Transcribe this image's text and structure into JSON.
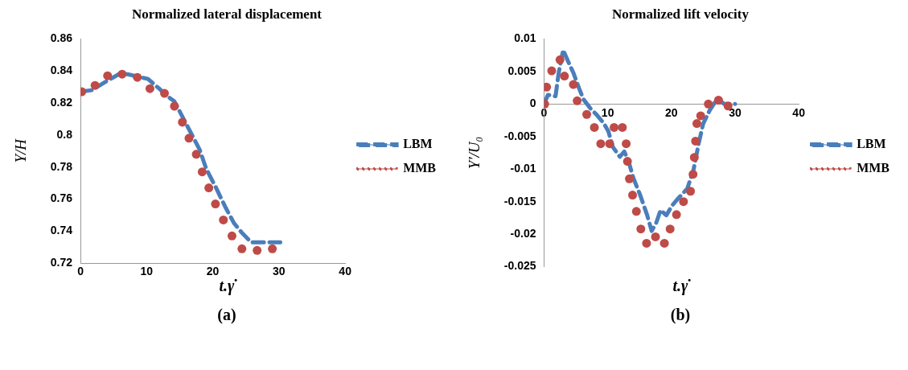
{
  "chart_data": [
    {
      "type": "line",
      "title": "Normalized lateral displacement",
      "xlabel": "t.γ̇",
      "ylabel": "Y/H",
      "annotations": [
        "(a)"
      ],
      "xlim": [
        0,
        40
      ],
      "xticks": [
        0,
        10,
        20,
        30,
        40
      ],
      "ylim": [
        0.72,
        0.86
      ],
      "yticks": [
        0.72,
        0.74,
        0.76,
        0.78,
        0.8,
        0.82,
        0.84,
        0.86
      ],
      "grid": false,
      "legend": "right",
      "series": [
        {
          "name": "LBM",
          "type": "line",
          "color": "#4a7ebb",
          "line_style": "dashed",
          "marker": "none",
          "x": [
            0,
            1.7,
            3.7,
            5.8,
            7.1,
            9.2,
            10.2,
            11.9,
            13.2,
            14.2,
            16.1,
            18,
            19,
            20.5,
            21.9,
            23.2,
            24.4,
            25.8,
            27.1,
            30.2
          ],
          "values": [
            0.827,
            0.828,
            0.833,
            0.838,
            0.838,
            0.836,
            0.835,
            0.829,
            0.824,
            0.821,
            0.806,
            0.791,
            0.779,
            0.767,
            0.755,
            0.745,
            0.739,
            0.733,
            0.733,
            0.733
          ]
        },
        {
          "name": "MMB",
          "type": "scatter",
          "color": "#be4b48",
          "marker": "circle",
          "x": [
            0.2,
            2.2,
            4.1,
            6.3,
            8.6,
            10.5,
            12.7,
            14.2,
            15.4,
            16.4,
            17.5,
            18.4,
            19.4,
            20.4,
            21.6,
            22.9,
            24.4,
            26.7,
            29
          ],
          "values": [
            0.827,
            0.831,
            0.837,
            0.838,
            0.836,
            0.829,
            0.826,
            0.818,
            0.808,
            0.798,
            0.788,
            0.777,
            0.767,
            0.757,
            0.747,
            0.737,
            0.729,
            0.728,
            0.729
          ]
        }
      ]
    },
    {
      "type": "line",
      "title": "Normalized lift velocity",
      "xlabel": "t.γ̇",
      "ylabel": "Y′/U₀",
      "annotations": [
        "(b)"
      ],
      "xlim": [
        0,
        40
      ],
      "xticks": [
        0,
        10,
        20,
        30,
        40
      ],
      "ylim": [
        -0.025,
        0.01
      ],
      "yticks": [
        -0.025,
        -0.02,
        -0.015,
        -0.01,
        -0.005,
        0,
        0.005,
        0.01
      ],
      "grid": false,
      "legend": "right",
      "series": [
        {
          "name": "LBM",
          "type": "line",
          "color": "#4a7ebb",
          "line_style": "dashed",
          "marker": "none",
          "x": [
            0,
            0.6,
            1.8,
            2.3,
            3,
            3.7,
            4.6,
            5.5,
            6.2,
            7.3,
            8.3,
            9.4,
            10.1,
            10.8,
            11.9,
            12.6,
            13.3,
            14,
            15.1,
            16.2,
            16.9,
            17.6,
            18.3,
            19.2,
            20.1,
            20.8,
            22.5,
            23.5,
            24.3,
            25,
            26,
            27,
            27.5,
            28.3,
            30
          ],
          "values": [
            0,
            0.0014,
            0.0012,
            0.0048,
            0.0083,
            0.0067,
            0.0048,
            0.0024,
            0.0007,
            -0.0007,
            -0.0017,
            -0.003,
            -0.0042,
            -0.0066,
            -0.0081,
            -0.0073,
            -0.0089,
            -0.0113,
            -0.014,
            -0.0171,
            -0.0195,
            -0.0183,
            -0.0163,
            -0.0171,
            -0.0156,
            -0.0148,
            -0.013,
            -0.01,
            -0.006,
            -0.003,
            -0.001,
            0.0005,
            0.0006,
            0,
            0
          ]
        },
        {
          "name": "MMB",
          "type": "scatter",
          "color": "#be4b48",
          "marker": "circle",
          "x": [
            0.1,
            0.4,
            1.2,
            2.5,
            3.2,
            4.6,
            5.2,
            6.7,
            7.9,
            8.9,
            10.3,
            11,
            12.3,
            12.9,
            13.1,
            13.4,
            13.9,
            14.5,
            15.2,
            16.1,
            17.5,
            18.9,
            19.8,
            20.8,
            21.9,
            23,
            23.4,
            23.6,
            23.8,
            24,
            24.6,
            25.8,
            27.4,
            28.9
          ],
          "values": [
            0,
            0.0026,
            0.0051,
            0.0068,
            0.0043,
            0.003,
            0.0005,
            -0.0016,
            -0.0036,
            -0.0061,
            -0.0061,
            -0.0036,
            -0.0036,
            -0.0061,
            -0.0088,
            -0.0115,
            -0.014,
            -0.0165,
            -0.0192,
            -0.0214,
            -0.0204,
            -0.0214,
            -0.0192,
            -0.017,
            -0.015,
            -0.0134,
            -0.0108,
            -0.0082,
            -0.0057,
            -0.003,
            -0.0018,
            0,
            0.0006,
            -0.0003
          ]
        }
      ]
    }
  ]
}
